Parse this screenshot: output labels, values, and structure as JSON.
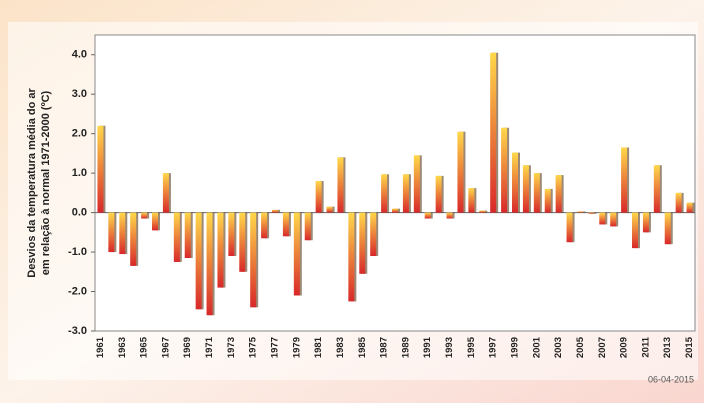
{
  "chart_data": {
    "type": "bar",
    "y_label": [
      "Desvios da temperatura média do ar",
      "em relação à normal 1971-2000 (ºC)"
    ],
    "date": "06-04-2015",
    "categories": [
      "1961",
      null,
      "1963",
      null,
      "1965",
      null,
      "1967",
      null,
      "1969",
      null,
      "1971",
      null,
      "1973",
      null,
      "1975",
      null,
      "1977",
      null,
      "1979",
      null,
      "1981",
      null,
      "1983",
      null,
      "1985",
      null,
      "1987",
      null,
      "1989",
      null,
      "1991",
      null,
      "1993",
      null,
      "1995",
      null,
      "1997",
      null,
      "1999",
      null,
      "2001",
      null,
      "2003",
      null,
      "2005",
      null,
      "2007",
      null,
      "2009",
      null,
      "2011",
      null,
      "2013",
      null,
      "2015"
    ],
    "values": [
      2.2,
      -1.0,
      -1.05,
      -1.35,
      -0.15,
      -0.45,
      1.0,
      -1.25,
      -1.15,
      -2.45,
      -2.6,
      -1.9,
      -1.1,
      -1.5,
      -2.4,
      -0.65,
      0.07,
      -0.6,
      -2.1,
      -0.7,
      0.8,
      0.15,
      1.4,
      -2.25,
      -1.55,
      -1.1,
      0.97,
      0.1,
      0.97,
      1.45,
      -0.15,
      0.93,
      -0.15,
      2.05,
      0.62,
      0.05,
      4.05,
      2.15,
      1.52,
      1.2,
      1.0,
      0.6,
      0.95,
      -0.75,
      0.03,
      -0.03,
      -0.3,
      -0.35,
      1.65,
      -0.9,
      -0.5,
      1.2,
      -0.8,
      0.5,
      0.25
    ],
    "colors": [
      "#ffd84a",
      "#d8282a"
    ],
    "ylim": [
      -3.0,
      4.5
    ],
    "yticks": [
      {
        "value": -3,
        "label": "-3.0"
      },
      {
        "value": -2,
        "label": "-2.0"
      },
      {
        "value": -1,
        "label": "-1.0"
      },
      {
        "value": 0,
        "label": "0.0"
      },
      {
        "value": 1,
        "label": "1.0"
      },
      {
        "value": 2,
        "label": "2.0"
      },
      {
        "value": 3,
        "label": "3.0"
      },
      {
        "value": 4,
        "label": "4.0"
      }
    ],
    "grid": false
  }
}
